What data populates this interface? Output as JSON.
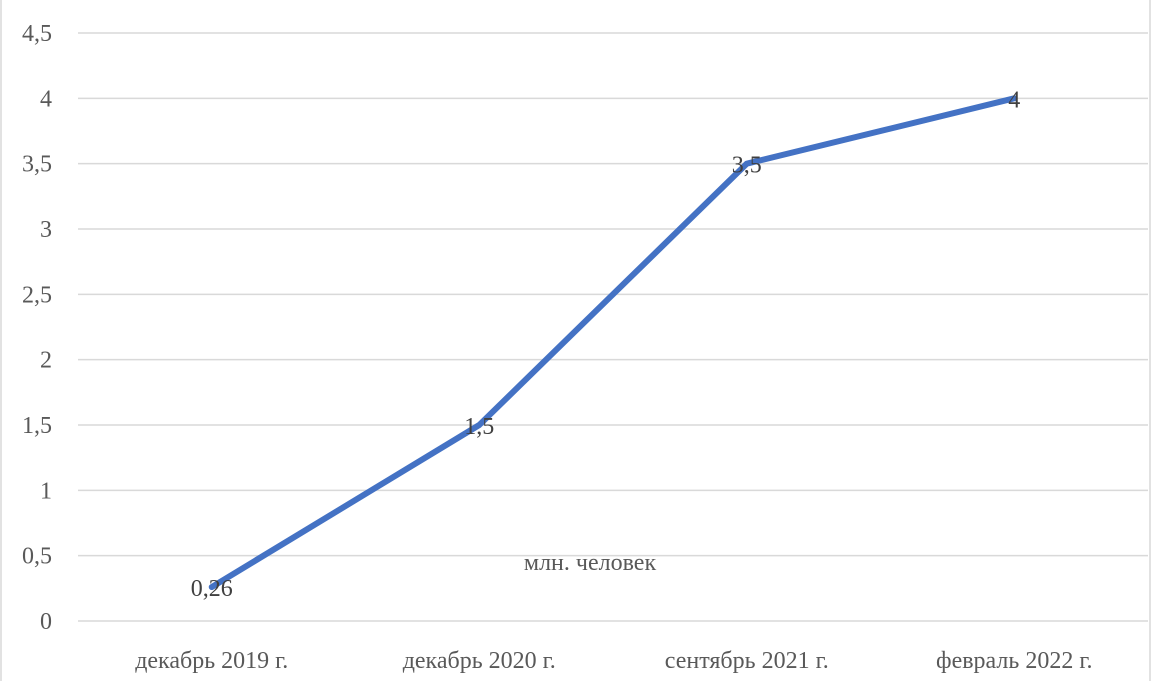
{
  "chart_data": {
    "type": "line",
    "title": "",
    "xlabel": "",
    "ylabel": "",
    "categories": [
      "декабрь 2019 г.",
      "декабрь 2020 г.",
      "сентябрь 2021 г.",
      "февраль 2022 г."
    ],
    "series": [
      {
        "values": [
          0.26,
          1.5,
          3.5,
          4
        ],
        "color": "#4472c4"
      }
    ],
    "data_labels": [
      "0,26",
      "1,5",
      "3,5",
      "4"
    ],
    "ylim": [
      0,
      4.5
    ],
    "yticks": [
      0,
      0.5,
      1,
      1.5,
      2,
      2.5,
      3,
      3.5,
      4,
      4.5
    ],
    "ytick_labels": [
      "0",
      "0,5",
      "1",
      "1,5",
      "2",
      "2,5",
      "3",
      "3,5",
      "4",
      "4,5"
    ],
    "annotation": "млн. человек",
    "grid": true,
    "legend": "none"
  }
}
